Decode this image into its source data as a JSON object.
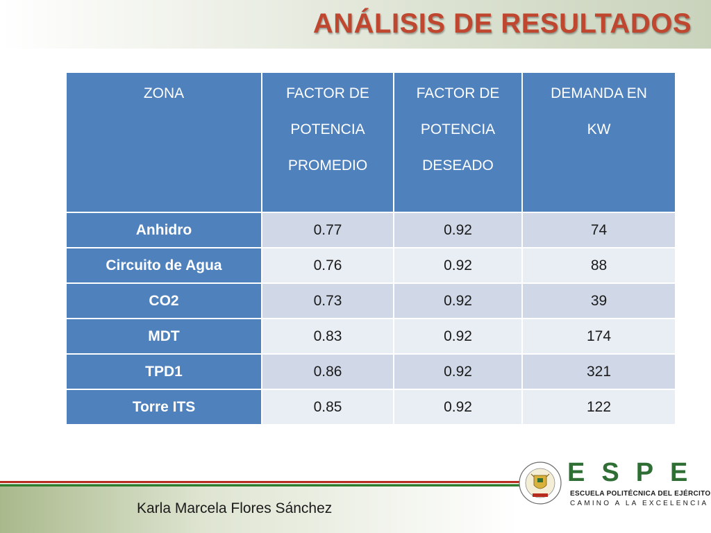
{
  "slide": {
    "title": "ANÁLISIS DE RESULTADOS",
    "author": "Karla Marcela Flores Sánchez"
  },
  "table": {
    "headers": [
      [
        "ZONA"
      ],
      [
        "FACTOR DE",
        "POTENCIA",
        "PROMEDIO"
      ],
      [
        "FACTOR DE",
        "POTENCIA",
        "DESEADO"
      ],
      [
        "DEMANDA EN",
        "KW"
      ]
    ],
    "rows": [
      {
        "zona": "Anhidro",
        "fp_promedio": "0.77",
        "fp_deseado": "0.92",
        "demanda_kw": "74"
      },
      {
        "zona": "Circuito de Agua",
        "fp_promedio": "0.76",
        "fp_deseado": "0.92",
        "demanda_kw": "88"
      },
      {
        "zona": "CO2",
        "fp_promedio": "0.73",
        "fp_deseado": "0.92",
        "demanda_kw": "39"
      },
      {
        "zona": "MDT",
        "fp_promedio": "0.83",
        "fp_deseado": "0.92",
        "demanda_kw": "174"
      },
      {
        "zona": "TPD1",
        "fp_promedio": "0.86",
        "fp_deseado": "0.92",
        "demanda_kw": "321"
      },
      {
        "zona": "Torre ITS",
        "fp_promedio": "0.85",
        "fp_deseado": "0.92",
        "demanda_kw": "122"
      }
    ]
  },
  "logo": {
    "letters": "ESPE",
    "name": "ESCUELA POLITÉCNICA DEL EJÉRCITO",
    "motto": "CAMINO A LA EXCELENCIA",
    "seal_top_text": "ESCUELA POLITÉCNICA DEL EJÉRCITO",
    "seal_bottom_text": "ECUADOR",
    "icon": "university-seal-icon"
  },
  "colors": {
    "title": "#c0472f",
    "header_bg": "#4f81bd",
    "row_odd": "#d0d8e8",
    "row_even": "#e9edf4",
    "brand_green": "#2f6f35",
    "line_red": "#b82b1f"
  }
}
